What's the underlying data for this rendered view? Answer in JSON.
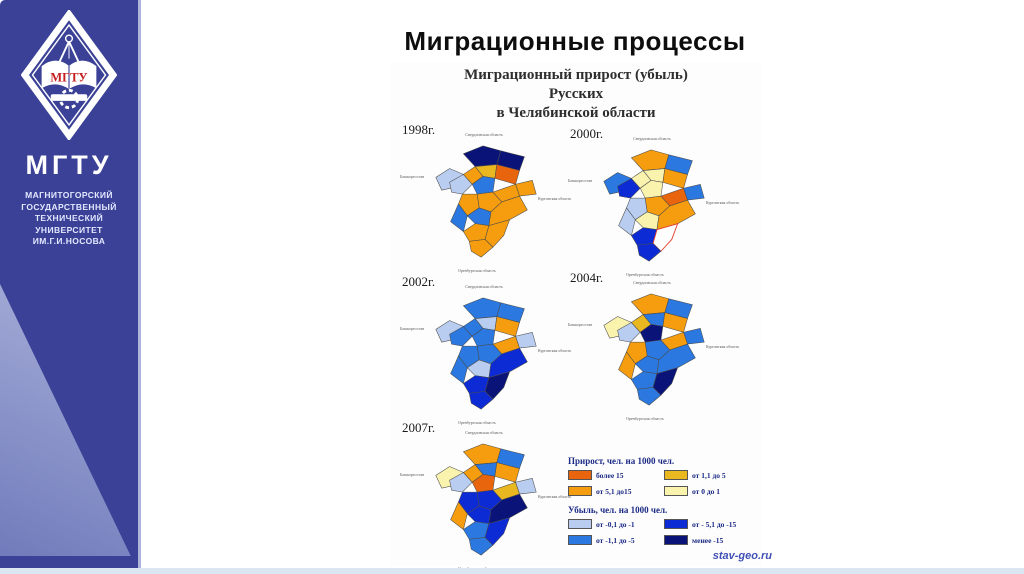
{
  "page_title": "Миграционные процессы",
  "sidebar": {
    "background_color": "#3a4197",
    "logo_emblem_text": "МГТУ",
    "logo_acronym": "МГТУ",
    "university_lines": [
      "МАГНИТОГОРСКИЙ",
      "ГОСУДАРСТВЕННЫЙ",
      "ТЕХНИЧЕСКИЙ",
      "УНИВЕРСИТЕТ",
      "ИМ.Г.И.НОСОВА"
    ]
  },
  "poster": {
    "title_lines": [
      "Миграционный прирост (убыль)",
      "Русских",
      "в Челябинской области"
    ],
    "footer": "stav-geo.ru",
    "neighbor_labels": {
      "top": "Свердловская область",
      "left": "Башкортостан",
      "right": "Курганская область",
      "bottom": "Оренбургская область"
    },
    "palette": {
      "O1": "#e8650d",
      "O2": "#f59d0e",
      "Y1": "#e9b820",
      "Y2": "#faf3ae",
      "B1": "#b9cdf0",
      "B2": "#2a78e0",
      "B3": "#0d2bd4",
      "B4": "#0a1478",
      "W": "#ffffff"
    },
    "map_border_color": "#4a4a4a",
    "special_outline_color": "#e23b2e",
    "maps": [
      {
        "year": "1998г.",
        "cells": [
          "B4",
          "B4",
          "B1",
          "B1",
          "O2",
          "Y1",
          "O1",
          "O2",
          "B2",
          "O2",
          "O2",
          "O2",
          "B2",
          "O2",
          "B2",
          "O2",
          "O2",
          "O2"
        ]
      },
      {
        "year": "2000г.",
        "cells": [
          "O2",
          "B2",
          "B2",
          "B3",
          "Y2",
          "Y2",
          "O2",
          "B2",
          "Y2",
          "O1",
          "O2",
          "B1",
          "Y2",
          "O2",
          "B1",
          "B3",
          "W",
          "B3"
        ]
      },
      {
        "year": "2002г.",
        "cells": [
          "B2",
          "B2",
          "B1",
          "B2",
          "B2",
          "B1",
          "O2",
          "B1",
          "B2",
          "O2",
          "B2",
          "B2",
          "B1",
          "B3",
          "B2",
          "B3",
          "B4",
          "B3"
        ]
      },
      {
        "year": "2004г.",
        "cells": [
          "O2",
          "B2",
          "Y2",
          "B1",
          "Y1",
          "B2",
          "O2",
          "B2",
          "B4",
          "O2",
          "B2",
          "O2",
          "B2",
          "B2",
          "O2",
          "B2",
          "B4",
          "B2"
        ]
      },
      {
        "year": "2007г.",
        "cells": [
          "O2",
          "B2",
          "Y2",
          "B1",
          "O2",
          "B2",
          "O2",
          "B1",
          "O1",
          "Y1",
          "B3",
          "B3",
          "B3",
          "B4",
          "O2",
          "B2",
          "B3",
          "B2"
        ]
      }
    ],
    "legend": {
      "growth": {
        "title": "Прирост, чел. на 1000 чел.",
        "items": [
          {
            "key": "O1",
            "label": "более 15"
          },
          {
            "key": "Y1",
            "label": "от 1,1 до 5"
          },
          {
            "key": "O2",
            "label": "от 5,1 до15"
          },
          {
            "key": "Y2",
            "label": "от 0 до 1"
          }
        ]
      },
      "decline": {
        "title": "Убыль, чел. на 1000 чел.",
        "items": [
          {
            "key": "B1",
            "label": "от -0,1 до -1"
          },
          {
            "key": "B3",
            "label": "от - 5,1 до -15"
          },
          {
            "key": "B2",
            "label": "от -1,1 до -5"
          },
          {
            "key": "B4",
            "label": "менее -15"
          }
        ]
      }
    }
  }
}
